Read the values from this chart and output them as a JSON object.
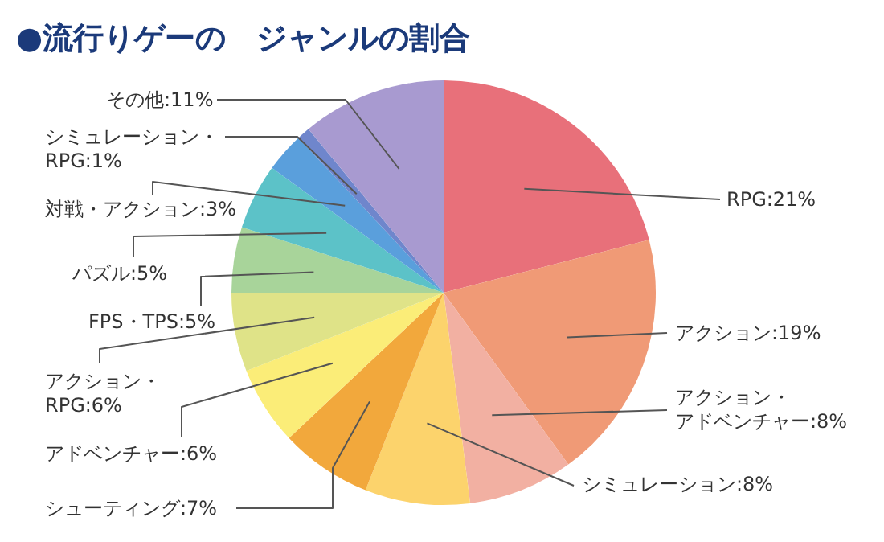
{
  "chart_data": {
    "type": "pie",
    "title": "●流行りゲーの　ジャンルの割合",
    "categories": [
      "RPG",
      "アクション",
      "アクション・アドベンチャー",
      "シミュレーション",
      "シューティング",
      "アドベンチャー",
      "アクション・RPG",
      "FPS・TPS",
      "パズル",
      "対戦・アクション",
      "シミュレーション・RPG",
      "その他"
    ],
    "values": [
      21,
      19,
      8,
      8,
      7,
      6,
      6,
      5,
      5,
      3,
      1,
      11
    ],
    "value_labels": [
      "21%",
      "19%",
      "8%",
      "8%",
      "7%",
      "6%",
      "6%",
      "5%",
      "5%",
      "3%",
      "1%",
      "11%"
    ],
    "colors": [
      "#e8707a",
      "#f09a76",
      "#f2b0a2",
      "#fcd36c",
      "#f2a83c",
      "#fbed78",
      "#dfe388",
      "#a8d49a",
      "#5cc2c8",
      "#5a9fdc",
      "#6f86cc",
      "#a89ad0"
    ]
  }
}
